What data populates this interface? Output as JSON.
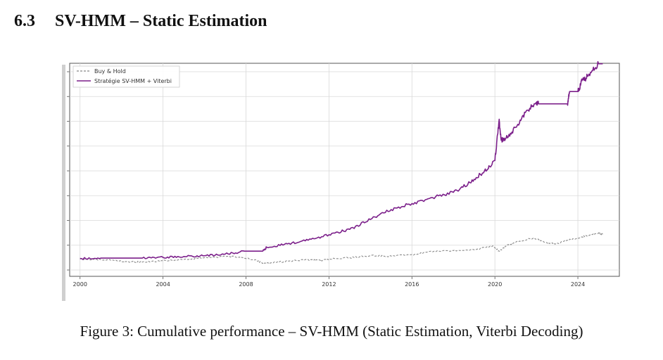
{
  "section": {
    "number": "6.3",
    "title": "SV-HMM – Static Estimation"
  },
  "caption": "Figure 3: Cumulative performance – SV-HMM (Static Estimation, Viterbi Decoding)",
  "chart_data": {
    "type": "line",
    "title": "",
    "xlabel": "",
    "ylabel": "",
    "x_ticks": [
      "2000",
      "2004",
      "2008",
      "2012",
      "2016",
      "2020",
      "2024"
    ],
    "xlim": [
      1999.5,
      2026.0
    ],
    "ylim": [
      0,
      1
    ],
    "y_tick_labels_visible": false,
    "grid": true,
    "legend_position": "top-left",
    "series": [
      {
        "name": "Buy & Hold",
        "color": "#888888",
        "style": "dashed",
        "x": [
          2000.0,
          2001.0,
          2002.0,
          2002.5,
          2003.0,
          2004.0,
          2005.0,
          2006.0,
          2007.0,
          2007.8,
          2008.5,
          2008.8,
          2009.2,
          2010.0,
          2011.0,
          2011.6,
          2012.0,
          2013.0,
          2014.0,
          2015.0,
          2016.0,
          2017.0,
          2018.0,
          2019.0,
          2019.9,
          2020.2,
          2020.5,
          2021.0,
          2021.9,
          2022.5,
          2022.9,
          2023.5,
          2024.0,
          2024.5,
          2025.0,
          2025.2
        ],
        "values": [
          0.055,
          0.052,
          0.045,
          0.042,
          0.04,
          0.046,
          0.053,
          0.062,
          0.068,
          0.064,
          0.048,
          0.034,
          0.036,
          0.045,
          0.052,
          0.048,
          0.054,
          0.062,
          0.072,
          0.07,
          0.078,
          0.092,
          0.098,
          0.102,
          0.122,
          0.095,
          0.12,
          0.14,
          0.162,
          0.138,
          0.13,
          0.15,
          0.162,
          0.175,
          0.185,
          0.18
        ]
      },
      {
        "name": "Stratégie SV-HMM + Viterbi",
        "color": "#7b1f8a",
        "style": "solid",
        "x": [
          2000.0,
          2001.0,
          2002.0,
          2003.0,
          2004.0,
          2005.0,
          2006.0,
          2007.0,
          2008.0,
          2008.8,
          2009.0,
          2010.0,
          2011.0,
          2012.0,
          2013.0,
          2014.0,
          2015.0,
          2016.0,
          2017.0,
          2018.0,
          2018.8,
          2019.5,
          2020.0,
          2020.2,
          2020.3,
          2020.5,
          2021.0,
          2021.5,
          2022.0,
          2022.1,
          2023.5,
          2023.6,
          2024.0,
          2024.2,
          2024.5,
          2025.0,
          2025.2
        ],
        "values": [
          0.058,
          0.06,
          0.06,
          0.06,
          0.064,
          0.068,
          0.072,
          0.08,
          0.095,
          0.095,
          0.115,
          0.132,
          0.15,
          0.178,
          0.205,
          0.255,
          0.305,
          0.335,
          0.365,
          0.392,
          0.44,
          0.5,
          0.552,
          0.755,
          0.655,
          0.66,
          0.72,
          0.8,
          0.845,
          0.838,
          0.838,
          0.9,
          0.9,
          0.955,
          0.98,
          1.04,
          1.04
        ]
      }
    ]
  }
}
